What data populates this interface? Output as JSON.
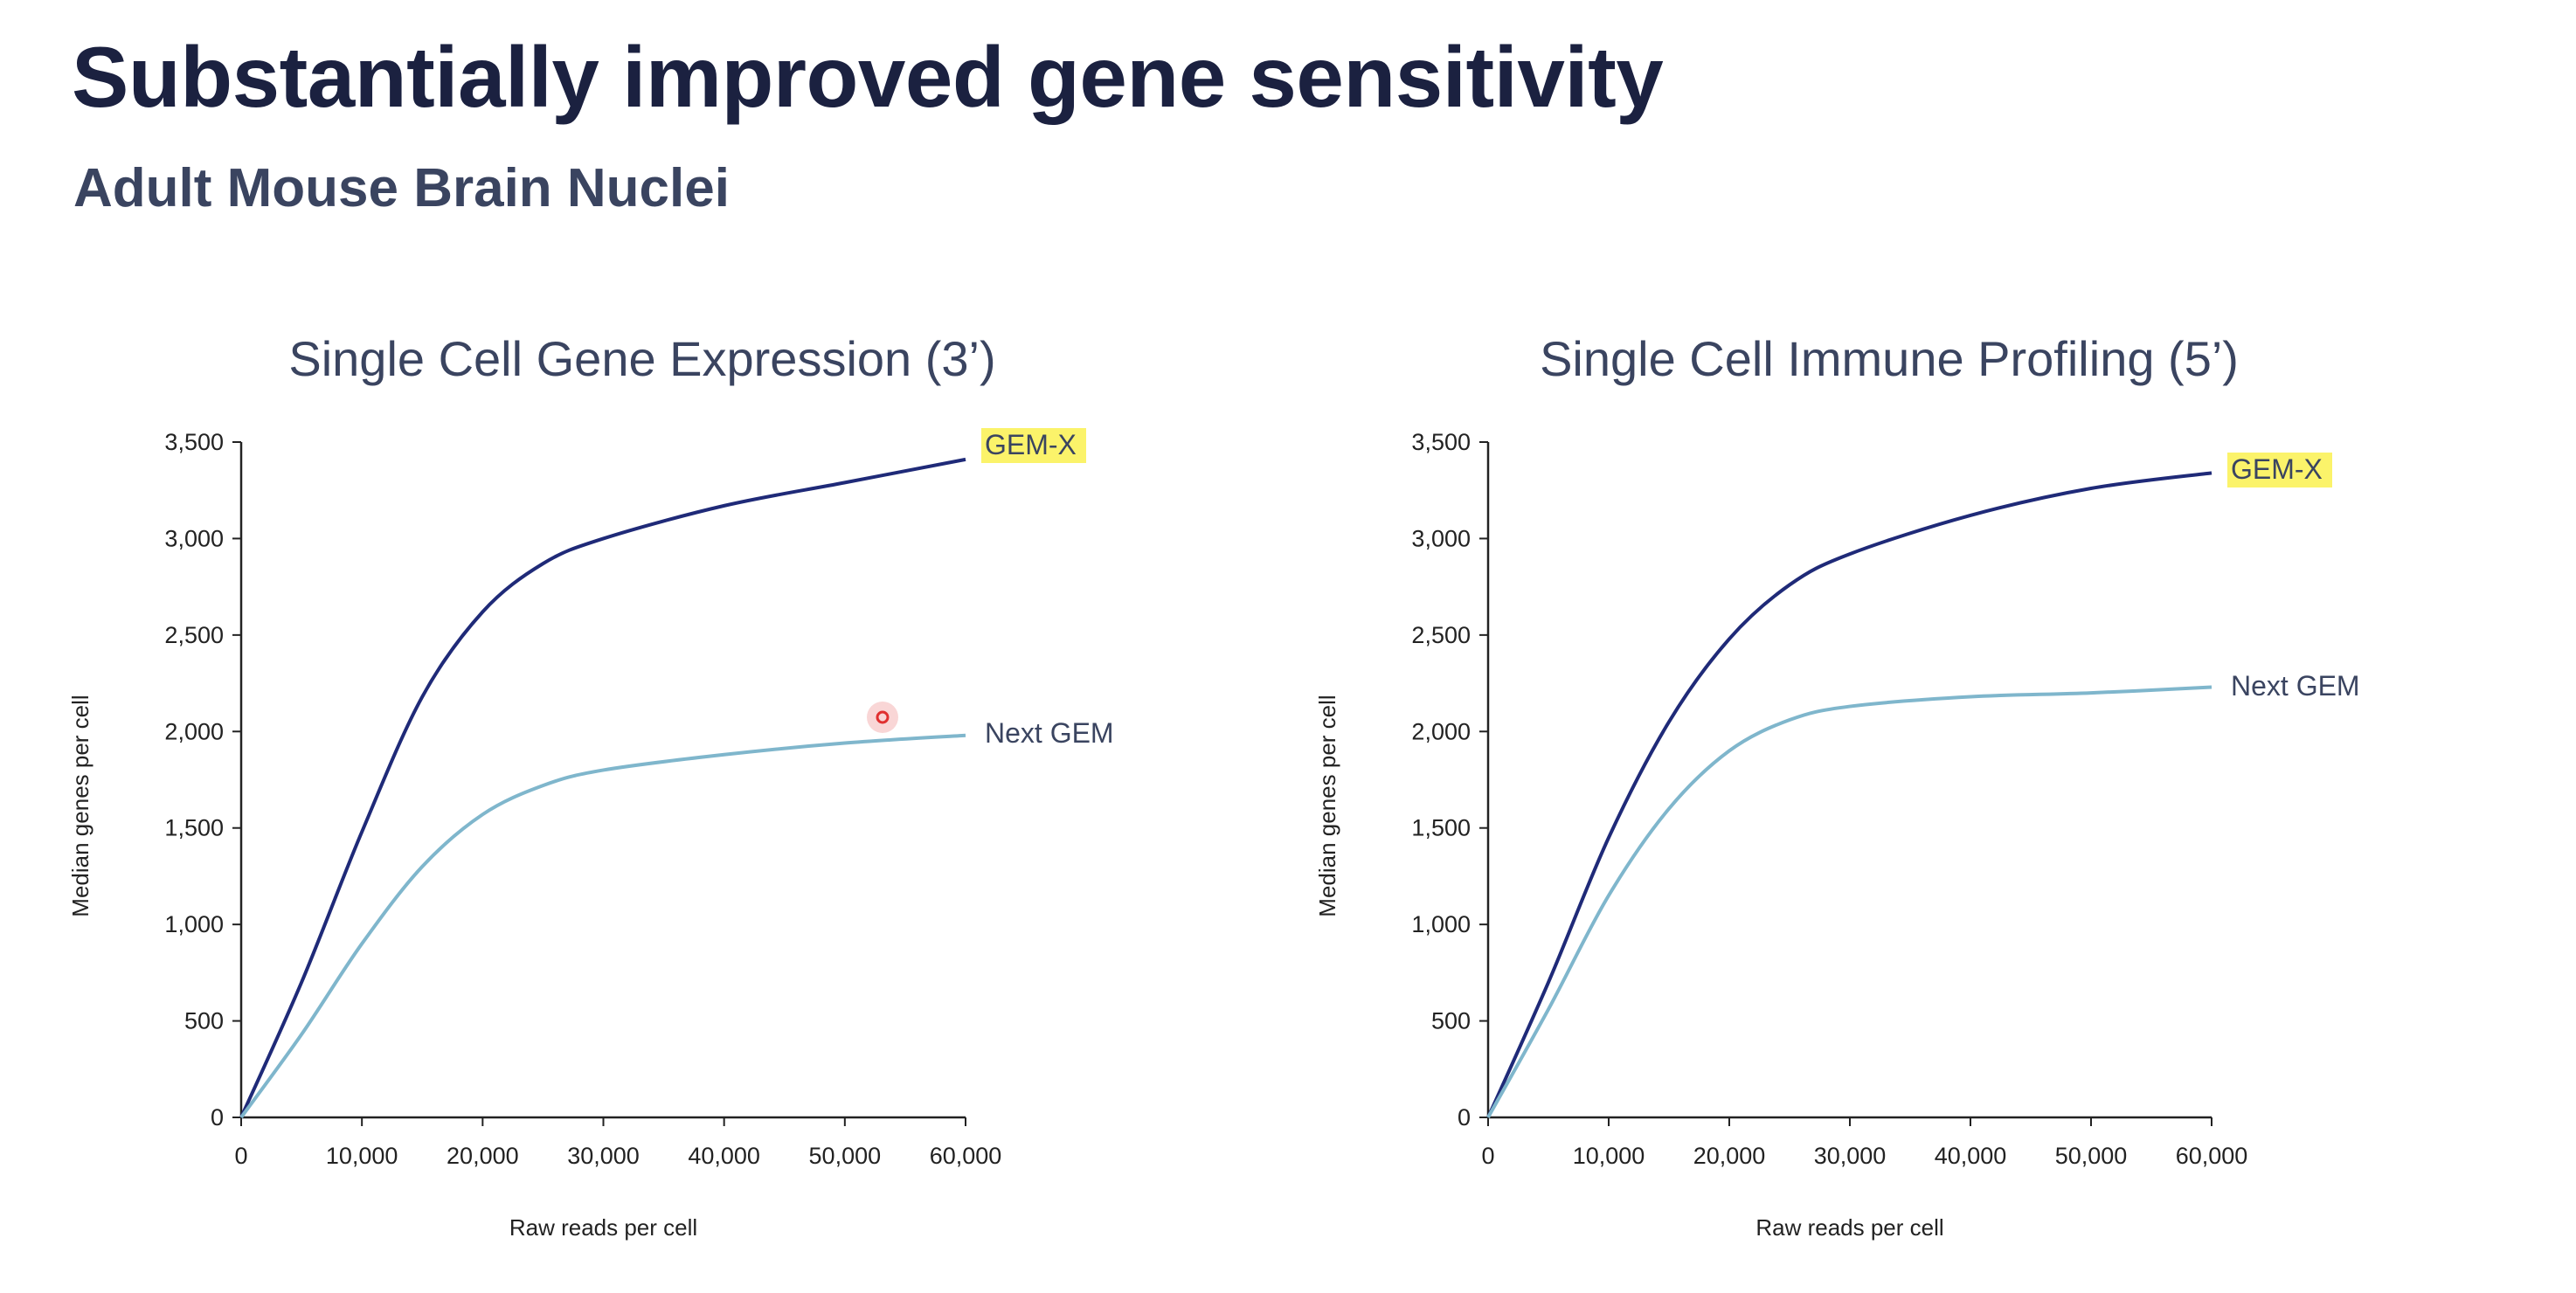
{
  "title": "Substantially improved gene sensitivity",
  "subtitle": "Adult Mouse Brain Nuclei",
  "colors": {
    "gemx": "#1f2a78",
    "nextgem": "#7fb6cc",
    "highlight": "#fbf36a",
    "cursor": "#e03030"
  },
  "chart_data": [
    {
      "type": "line",
      "title": "Single Cell Gene Expression (3’)",
      "xlabel": "Raw reads per cell",
      "ylabel": "Median genes per cell",
      "xlim": [
        0,
        60000
      ],
      "ylim": [
        0,
        3500
      ],
      "xticks": [
        0,
        10000,
        20000,
        30000,
        40000,
        50000,
        60000
      ],
      "xtick_labels": [
        "0",
        "10,000",
        "20,000",
        "30,000",
        "40,000",
        "50,000",
        "60,000"
      ],
      "yticks": [
        0,
        500,
        1000,
        1500,
        2000,
        2500,
        3000,
        3500
      ],
      "ytick_labels": [
        "0",
        "500",
        "1,000",
        "1,500",
        "2,000",
        "2,500",
        "3,000",
        "3,500"
      ],
      "x": [
        0,
        5000,
        10000,
        15000,
        20000,
        25000,
        30000,
        40000,
        50000,
        60000
      ],
      "series": [
        {
          "name": "GEM-X",
          "highlighted": true,
          "values": [
            0,
            700,
            1480,
            2180,
            2620,
            2870,
            3000,
            3170,
            3290,
            3410
          ]
        },
        {
          "name": "Next GEM",
          "highlighted": false,
          "values": [
            0,
            430,
            900,
            1300,
            1570,
            1720,
            1800,
            1880,
            1940,
            1980
          ]
        }
      ]
    },
    {
      "type": "line",
      "title": "Single Cell Immune Profiling (5’)",
      "xlabel": "Raw reads per cell",
      "ylabel": "Median genes per cell",
      "xlim": [
        0,
        60000
      ],
      "ylim": [
        0,
        3500
      ],
      "xticks": [
        0,
        10000,
        20000,
        30000,
        40000,
        50000,
        60000
      ],
      "xtick_labels": [
        "0",
        "10,000",
        "20,000",
        "30,000",
        "40,000",
        "50,000",
        "60,000"
      ],
      "yticks": [
        0,
        500,
        1000,
        1500,
        2000,
        2500,
        3000,
        3500
      ],
      "ytick_labels": [
        "0",
        "500",
        "1,000",
        "1,500",
        "2,000",
        "2,500",
        "3,000",
        "3,500"
      ],
      "x": [
        0,
        5000,
        10000,
        15000,
        20000,
        25000,
        30000,
        40000,
        50000,
        60000
      ],
      "series": [
        {
          "name": "GEM-X",
          "highlighted": true,
          "values": [
            0,
            700,
            1450,
            2050,
            2480,
            2760,
            2920,
            3120,
            3260,
            3340
          ]
        },
        {
          "name": "Next GEM",
          "highlighted": false,
          "values": [
            0,
            560,
            1150,
            1600,
            1900,
            2060,
            2130,
            2180,
            2200,
            2230
          ]
        }
      ]
    }
  ]
}
